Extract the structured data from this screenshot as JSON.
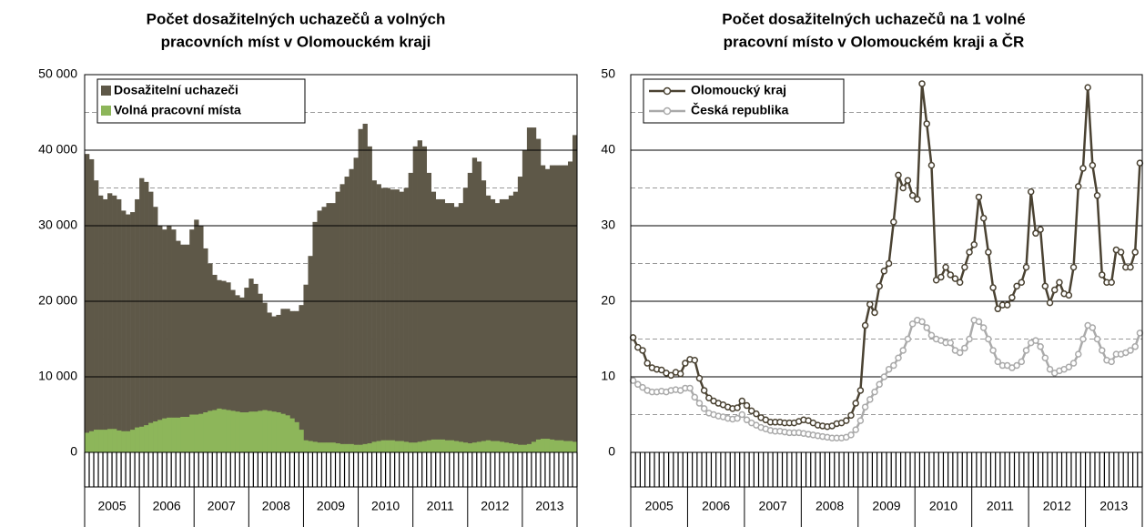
{
  "chart_data": [
    {
      "type": "bar",
      "title": [
        "Počet dosažitelných  uchazečů a volných",
        "pracovních míst v Olomouckém kraji"
      ],
      "year_labels": [
        "2005",
        "2006",
        "2007",
        "2008",
        "2009",
        "2010",
        "2011",
        "2012",
        "2013"
      ],
      "ylim": [
        0,
        50000
      ],
      "yticks": [
        0,
        {
          "value": 10000,
          "label": "10 000"
        },
        {
          "value": 20000,
          "label": "20 000"
        },
        {
          "value": 30000,
          "label": "30 000"
        },
        {
          "value": 40000,
          "label": "40 000"
        },
        {
          "value": 50000,
          "label": "50 000"
        }
      ],
      "grid": true,
      "legend": "top-left",
      "series": [
        {
          "name": "Dosažitelní uchazeči",
          "color": "#5e5848",
          "values": [
            39500,
            38800,
            36000,
            34000,
            33500,
            34300,
            34000,
            33500,
            32000,
            31500,
            31800,
            33500,
            36300,
            35800,
            34500,
            32500,
            30000,
            29500,
            30000,
            29500,
            28000,
            27500,
            27500,
            29500,
            30800,
            30000,
            27000,
            25000,
            23500,
            22800,
            22700,
            22500,
            21500,
            20800,
            20500,
            21800,
            23000,
            22300,
            21000,
            19800,
            18500,
            18000,
            18200,
            19000,
            19000,
            18700,
            18700,
            19500,
            22200,
            26000,
            30500,
            32000,
            32500,
            33000,
            33000,
            34500,
            35500,
            36500,
            37500,
            39000,
            42800,
            43500,
            40500,
            36000,
            35500,
            35000,
            35000,
            34800,
            34800,
            34500,
            35000,
            37000,
            40500,
            41300,
            40500,
            37000,
            34500,
            33500,
            33500,
            33000,
            33000,
            32500,
            33000,
            35000,
            37000,
            39000,
            38500,
            36000,
            34000,
            33500,
            33000,
            33500,
            33500,
            34000,
            34500,
            36500,
            40000,
            43000,
            43000,
            41500,
            38000,
            37500,
            38000,
            38000,
            38000,
            38000,
            38500,
            42000
          ]
        },
        {
          "name": "Volná pracovní místa",
          "color": "#8db65a",
          "values": [
            2600,
            2800,
            3000,
            3000,
            3000,
            3100,
            3100,
            2900,
            2800,
            2800,
            3000,
            3300,
            3400,
            3600,
            3900,
            4100,
            4300,
            4500,
            4600,
            4600,
            4600,
            4700,
            4700,
            5000,
            5000,
            5100,
            5300,
            5500,
            5600,
            5800,
            5700,
            5600,
            5500,
            5400,
            5300,
            5300,
            5400,
            5400,
            5500,
            5600,
            5500,
            5400,
            5300,
            5100,
            4900,
            4500,
            4000,
            3000,
            1600,
            1500,
            1400,
            1300,
            1300,
            1300,
            1300,
            1200,
            1100,
            1100,
            1100,
            1000,
            1000,
            1100,
            1200,
            1400,
            1500,
            1600,
            1600,
            1600,
            1500,
            1500,
            1400,
            1300,
            1300,
            1400,
            1500,
            1600,
            1700,
            1700,
            1700,
            1600,
            1600,
            1500,
            1400,
            1300,
            1200,
            1300,
            1400,
            1500,
            1600,
            1500,
            1500,
            1400,
            1300,
            1200,
            1100,
            1000,
            1000,
            1100,
            1400,
            1700,
            1800,
            1800,
            1700,
            1600,
            1600,
            1500,
            1500,
            1400
          ]
        }
      ]
    },
    {
      "type": "line",
      "title": [
        "Počet dosažitelných  uchazečů na 1 volné",
        "pracovní místo v Olomouckém kraji a ČR"
      ],
      "year_labels": [
        "2005",
        "2006",
        "2007",
        "2008",
        "2009",
        "2010",
        "2011",
        "2012",
        "2013"
      ],
      "ylim": [
        0,
        50
      ],
      "yticks": [
        0,
        10,
        20,
        30,
        40,
        50
      ],
      "grid": true,
      "legend": "top-left",
      "series": [
        {
          "name": "Olomoucký kraj",
          "color": "#4a4232",
          "values": [
            15.2,
            13.9,
            13.5,
            11.8,
            11.2,
            11.0,
            10.9,
            10.5,
            10.2,
            10.6,
            10.4,
            11.8,
            12.3,
            12.2,
            9.8,
            8.2,
            7.2,
            6.8,
            6.5,
            6.3,
            6.0,
            5.8,
            5.9,
            6.8,
            6.2,
            5.5,
            5.1,
            4.6,
            4.3,
            4.0,
            4.0,
            4.0,
            3.9,
            3.9,
            3.9,
            4.1,
            4.3,
            4.2,
            3.9,
            3.6,
            3.5,
            3.4,
            3.5,
            3.8,
            3.9,
            4.2,
            4.9,
            6.5,
            8.2,
            16.8,
            19.6,
            18.5,
            22.0,
            24.0,
            25.0,
            30.5,
            36.7,
            35.0,
            36.0,
            34.0,
            33.5,
            48.8,
            43.5,
            38.0,
            22.8,
            23.2,
            24.5,
            23.5,
            23.0,
            22.5,
            24.5,
            26.5,
            27.5,
            33.8,
            31.0,
            26.5,
            21.8,
            19.0,
            19.5,
            19.5,
            20.5,
            22.0,
            22.5,
            24.5,
            34.5,
            29.0,
            29.5,
            22.0,
            19.8,
            21.5,
            22.5,
            21.0,
            20.8,
            24.5,
            35.2,
            37.6,
            48.3,
            38.0,
            34.0,
            23.5,
            22.5,
            22.5,
            26.8,
            26.5,
            24.5,
            24.5,
            26.5,
            38.3
          ]
        },
        {
          "name": "Česká republika",
          "color": "#aaaaaa",
          "values": [
            9.5,
            9.0,
            8.6,
            8.2,
            8.0,
            8.0,
            8.1,
            8.0,
            8.2,
            8.3,
            8.2,
            8.5,
            8.5,
            7.3,
            6.5,
            5.8,
            5.2,
            5.0,
            4.8,
            4.7,
            4.5,
            4.4,
            4.5,
            5.0,
            4.3,
            3.9,
            3.6,
            3.3,
            3.1,
            2.9,
            2.8,
            2.8,
            2.7,
            2.6,
            2.6,
            2.6,
            2.5,
            2.4,
            2.3,
            2.2,
            2.1,
            2.0,
            1.9,
            1.9,
            1.9,
            2.0,
            2.3,
            3.0,
            4.2,
            6.0,
            7.0,
            8.0,
            9.0,
            10.0,
            11.0,
            11.5,
            12.5,
            13.5,
            15.0,
            17.0,
            17.5,
            17.3,
            16.5,
            15.5,
            15.0,
            14.8,
            14.5,
            14.5,
            13.5,
            13.2,
            13.8,
            15.0,
            17.5,
            17.3,
            16.5,
            15.0,
            13.5,
            12.0,
            11.5,
            11.5,
            11.2,
            11.5,
            12.0,
            13.5,
            14.5,
            14.8,
            14.0,
            12.5,
            11.0,
            10.5,
            10.8,
            11.0,
            11.3,
            11.8,
            13.0,
            15.0,
            16.8,
            16.5,
            15.0,
            13.5,
            12.2,
            12.0,
            13.0,
            13.0,
            13.2,
            13.5,
            14.0,
            15.8
          ]
        }
      ]
    }
  ]
}
